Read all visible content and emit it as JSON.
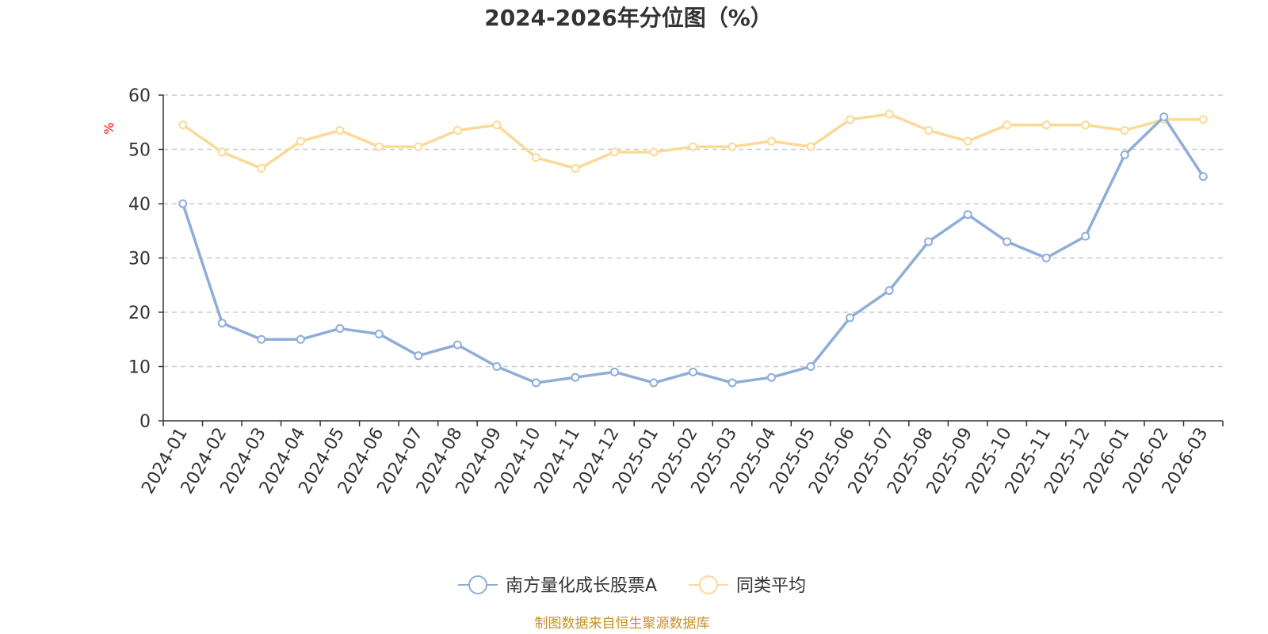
{
  "chart_data": {
    "type": "line",
    "title": "2024-2026年分位图（%）",
    "ylabel": "%",
    "xlabel": "",
    "ylim": [
      0,
      60
    ],
    "yticks": [
      0,
      10,
      20,
      30,
      40,
      50,
      60
    ],
    "grid": true,
    "legend_position": "bottom-center",
    "categories": [
      "2024-01",
      "2024-02",
      "2024-03",
      "2024-04",
      "2024-05",
      "2024-06",
      "2024-07",
      "2024-08",
      "2024-09",
      "2024-10",
      "2024-11",
      "2024-12",
      "2025-01",
      "2025-02",
      "2025-03",
      "2025-04",
      "2025-05",
      "2025-06",
      "2025-07",
      "2025-08",
      "2025-09",
      "2025-10",
      "2025-11",
      "2025-12",
      "2026-01",
      "2026-02",
      "2026-03"
    ],
    "series": [
      {
        "name": "南方量化成长股票A",
        "color": "#8eadd8",
        "values": [
          40,
          18,
          15,
          15,
          17,
          16,
          12,
          14,
          10,
          7,
          8,
          9,
          7,
          9,
          7,
          8,
          10,
          19,
          24,
          33,
          38,
          33,
          30,
          34,
          49,
          56,
          45
        ]
      },
      {
        "name": "同类平均",
        "color": "#fcd997",
        "values": [
          54.5,
          49.5,
          46.5,
          51.5,
          53.5,
          50.5,
          50.5,
          53.5,
          54.5,
          48.5,
          46.5,
          49.5,
          49.5,
          50.5,
          50.5,
          51.5,
          50.5,
          55.5,
          56.5,
          53.5,
          51.5,
          54.5,
          54.5,
          54.5,
          53.5,
          55.5,
          55.5
        ]
      }
    ]
  },
  "source_note": "制图数据来自恒生聚源数据库"
}
